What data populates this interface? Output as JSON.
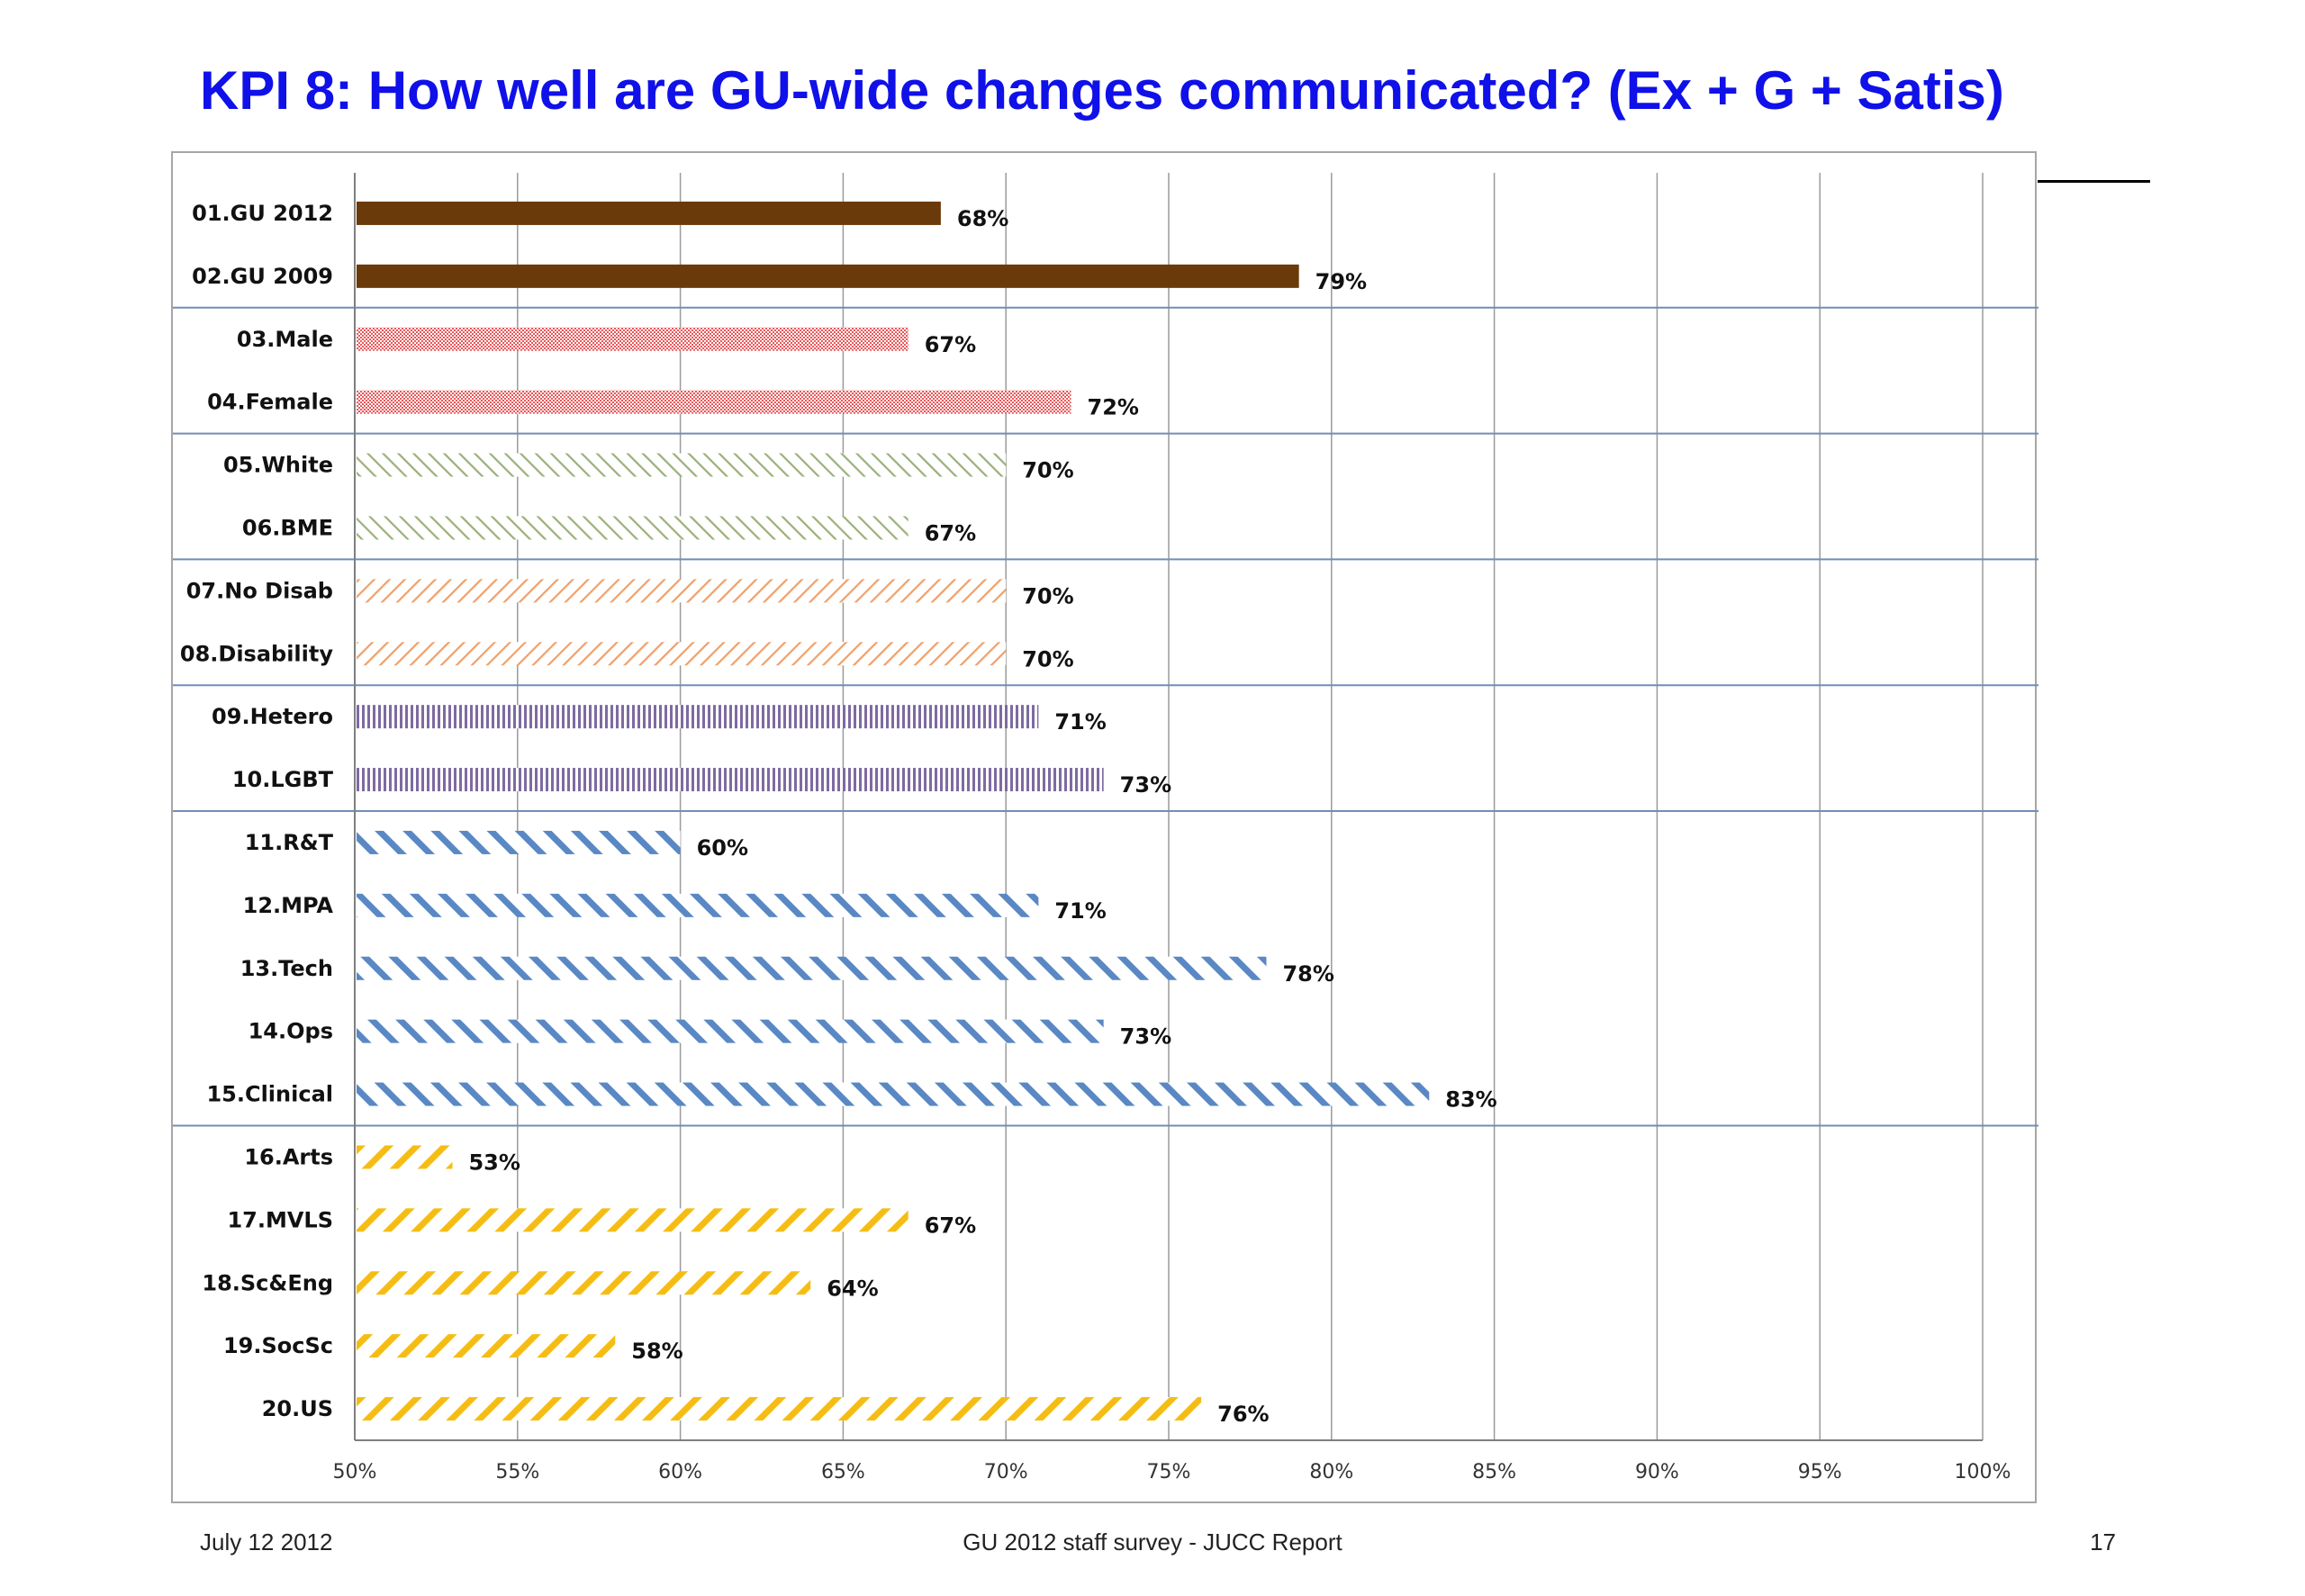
{
  "slide": {
    "title": "KPI 8: How well are GU-wide changes communicated? (Ex + G + Satis)",
    "footer_date": "July 12 2012",
    "footer_center": "GU 2012 staff survey -  JUCC Report",
    "page_number": "17"
  },
  "chart_data": {
    "type": "bar",
    "orientation": "horizontal",
    "title": "",
    "xlabel": "",
    "ylabel": "",
    "xlim": [
      50,
      100
    ],
    "x_ticks": [
      "50%",
      "55%",
      "60%",
      "65%",
      "70%",
      "75%",
      "80%",
      "85%",
      "90%",
      "95%",
      "100%"
    ],
    "grid": true,
    "legend": "none",
    "categories": [
      "01.GU 2012",
      "02.GU 2009",
      "03.Male",
      "04.Female",
      "05.White",
      "06.BME",
      "07.No Disab",
      "08.Disability",
      "09.Hetero",
      "10.LGBT",
      "11.R&T",
      "12.MPA",
      "13.Tech",
      "14.Ops",
      "15.Clinical",
      "16.Arts",
      "17.MVLS",
      "18.Sc&Eng",
      "19.SocSc",
      "20.US"
    ],
    "values": [
      68,
      79,
      67,
      72,
      70,
      67,
      70,
      70,
      71,
      73,
      60,
      71,
      78,
      73,
      83,
      53,
      67,
      64,
      58,
      76
    ],
    "value_labels": [
      "68%",
      "79%",
      "67%",
      "72%",
      "70%",
      "67%",
      "70%",
      "70%",
      "71%",
      "73%",
      "60%",
      "71%",
      "78%",
      "73%",
      "83%",
      "53%",
      "67%",
      "64%",
      "58%",
      "76%"
    ],
    "groups": [
      {
        "start": 0,
        "end": 1,
        "color": "#6b3a0a",
        "pattern": "solid"
      },
      {
        "start": 2,
        "end": 3,
        "color": "#e8585a",
        "pattern": "dots"
      },
      {
        "start": 4,
        "end": 5,
        "color": "#9bb07a",
        "pattern": "back-diagonal-thin"
      },
      {
        "start": 6,
        "end": 7,
        "color": "#f0a06a",
        "pattern": "forward-diagonal-thin"
      },
      {
        "start": 8,
        "end": 9,
        "color": "#7e6aa0",
        "pattern": "vertical"
      },
      {
        "start": 10,
        "end": 14,
        "color": "#5a88c4",
        "pattern": "back-diagonal-wide"
      },
      {
        "start": 15,
        "end": 19,
        "color": "#f5bd14",
        "pattern": "forward-diagonal-wide"
      }
    ]
  }
}
